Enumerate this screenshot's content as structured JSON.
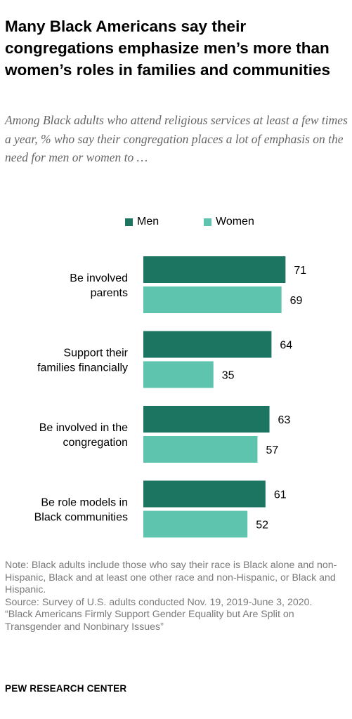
{
  "title": "Many Black Americans say their congregations emphasize men’s more than women’s roles in families and communities",
  "subtitle": "Among Black adults who attend religious services at least a few times a year, % who say their congregation places a lot of emphasis on the need for men or women to …",
  "legend": {
    "men": "Men",
    "women": "Women"
  },
  "colors": {
    "men": "#1b7560",
    "women": "#5fc4ad"
  },
  "chart_data": {
    "type": "bar",
    "orientation": "horizontal",
    "categories": [
      "Be involved parents",
      "Support their families financially",
      "Be involved in the congregation",
      "Be role models in Black communities"
    ],
    "category_lines": [
      [
        "Be involved",
        "parents"
      ],
      [
        "Support their",
        "families financially"
      ],
      [
        "Be involved in the",
        "congregation"
      ],
      [
        "Be role models in",
        "Black communities"
      ]
    ],
    "series": [
      {
        "name": "Men",
        "values": [
          71,
          64,
          63,
          61
        ]
      },
      {
        "name": "Women",
        "values": [
          69,
          35,
          57,
          52
        ]
      }
    ],
    "xlim": [
      0,
      100
    ],
    "grid": false,
    "legend_position": "top"
  },
  "note": {
    "note_text": "Note: Black adults include those who say their race is Black alone and non-Hispanic, Black and at least one other race and non-Hispanic, or Black and Hispanic.",
    "source_text": "Source: Survey of U.S. adults conducted Nov. 19, 2019-June 3, 2020.",
    "report_text": "“Black Americans Firmly Support Gender Equality but Are Split on Transgender and Nonbinary Issues”"
  },
  "brand": "PEW RESEARCH CENTER"
}
